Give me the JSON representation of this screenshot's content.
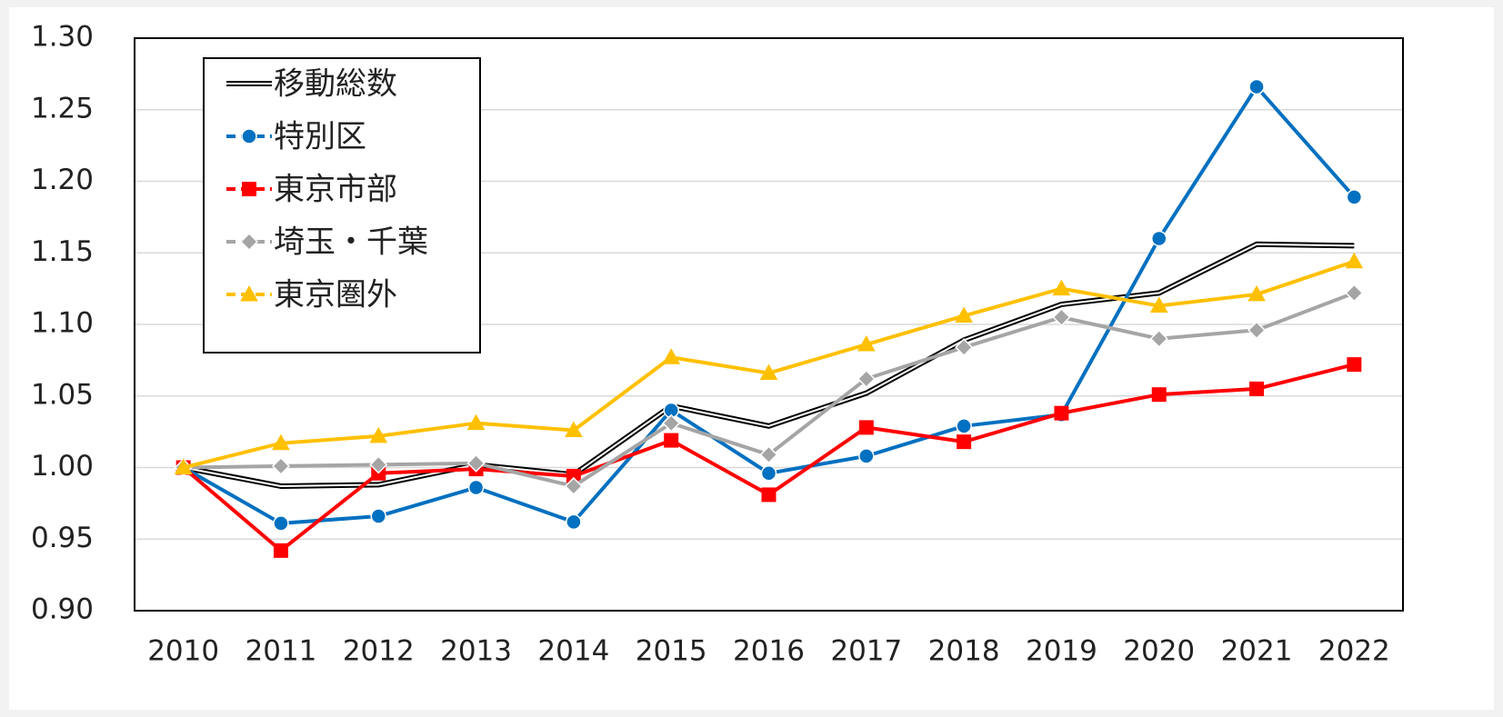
{
  "chart_data": {
    "type": "line",
    "categories": [
      "2010",
      "2011",
      "2012",
      "2013",
      "2014",
      "2015",
      "2016",
      "2017",
      "2018",
      "2019",
      "2020",
      "2021",
      "2022"
    ],
    "series": [
      {
        "name": "移動総数",
        "color": "#000000",
        "marker": "none",
        "style": "double",
        "values": [
          1.0,
          0.987,
          0.988,
          1.002,
          0.995,
          1.043,
          1.029,
          1.052,
          1.089,
          1.114,
          1.122,
          1.156,
          1.155
        ]
      },
      {
        "name": "特別区",
        "color": "#0070c0",
        "marker": "circle",
        "style": "solid",
        "values": [
          1.0,
          0.961,
          0.966,
          0.986,
          0.962,
          1.04,
          0.996,
          1.008,
          1.029,
          1.037,
          1.16,
          1.266,
          1.189
        ]
      },
      {
        "name": "東京市部",
        "color": "#ff0000",
        "marker": "square",
        "style": "solid",
        "values": [
          1.0,
          0.942,
          0.996,
          0.999,
          0.994,
          1.019,
          0.981,
          1.028,
          1.018,
          1.038,
          1.051,
          1.055,
          1.072
        ]
      },
      {
        "name": "埼玉・千葉",
        "color": "#a5a5a5",
        "marker": "diamond",
        "style": "solid",
        "values": [
          1.0,
          1.001,
          1.002,
          1.003,
          0.987,
          1.031,
          1.009,
          1.062,
          1.084,
          1.105,
          1.09,
          1.096,
          1.122
        ]
      },
      {
        "name": "東京圏外",
        "color": "#ffc000",
        "marker": "triangle",
        "style": "solid",
        "values": [
          1.0,
          1.017,
          1.022,
          1.031,
          1.026,
          1.077,
          1.066,
          1.086,
          1.106,
          1.125,
          1.113,
          1.121,
          1.144
        ]
      }
    ],
    "ylim": [
      0.9,
      1.3
    ],
    "yticks": [
      {
        "value": 0.9,
        "label": "0.90"
      },
      0.95,
      {
        "value": 1.0,
        "label": "1.00"
      },
      1.05,
      {
        "value": 1.1,
        "label": "1.10"
      },
      1.15,
      {
        "value": 1.2,
        "label": "1.20"
      },
      1.25,
      {
        "value": 1.3,
        "label": "1.30"
      }
    ],
    "grid": true,
    "legend": "upper-left"
  }
}
